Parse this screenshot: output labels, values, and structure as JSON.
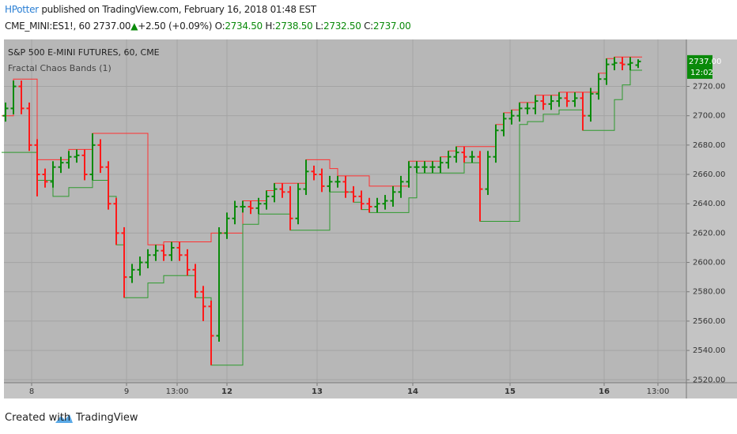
{
  "header": {
    "author": "HPotter",
    "published": "published on TradingView.com, February 16, 2018 01:48 EST",
    "symbol": "CME_MINI:ES1!, 60",
    "last": "2737.00",
    "arrow": "▲",
    "change": "+2.50 (+0.09%)",
    "o_label": "O:",
    "o": "2734.50",
    "h_label": "H:",
    "h": "2738.50",
    "l_label": "L:",
    "l": "2732.50",
    "c_label": "C:",
    "c": "2737.00"
  },
  "footer": {
    "created": "Created with",
    "brand": "TradingView"
  },
  "chart_data": {
    "type": "ohlc",
    "title": "S&P 500 E-MINI FUTURES, 60, CME",
    "indicator": "Fractal Chaos Bands (1)",
    "up_color": "#0a8a0a",
    "down_color": "#ff1a1a",
    "xlim": [
      0,
      86
    ],
    "ylim": [
      2518,
      2752
    ],
    "xticks": [
      {
        "value": 3.3,
        "label": "8"
      },
      {
        "value": 15.3,
        "label": "9"
      },
      {
        "value": 21.7,
        "label": "13:00"
      },
      {
        "value": 28,
        "label": "12"
      },
      {
        "value": 39.4,
        "label": "13"
      },
      {
        "value": 51.5,
        "label": "14"
      },
      {
        "value": 63.8,
        "label": "15"
      },
      {
        "value": 75.7,
        "label": "16"
      },
      {
        "value": 82.5,
        "label": "13:00"
      }
    ],
    "yticks": [
      {
        "value": 2520,
        "label": "2520.00"
      },
      {
        "value": 2540,
        "label": "2540.00"
      },
      {
        "value": 2560,
        "label": "2560.00"
      },
      {
        "value": 2580,
        "label": "2580.00"
      },
      {
        "value": 2600,
        "label": "2600.00"
      },
      {
        "value": 2620,
        "label": "2620.00"
      },
      {
        "value": 2640,
        "label": "2640.00"
      },
      {
        "value": 2660,
        "label": "2660.00"
      },
      {
        "value": 2680,
        "label": "2680.00"
      },
      {
        "value": 2700,
        "label": "2700.00"
      },
      {
        "value": 2720,
        "label": "2720.00"
      }
    ],
    "grid": true,
    "open": [
      2700,
      2705,
      2720,
      2705,
      2680,
      2660,
      2655,
      2665,
      2668,
      2672,
      2673,
      2660,
      2680,
      2665,
      2640,
      2620,
      2590,
      2595,
      2600,
      2605,
      2608,
      2605,
      2610,
      2605,
      2595,
      2580,
      2570,
      2550,
      2620,
      2630,
      2638,
      2638,
      2637,
      2640,
      2645,
      2650,
      2648,
      2630,
      2650,
      2662,
      2660,
      2652,
      2655,
      2655,
      2648,
      2645,
      2640,
      2638,
      2640,
      2642,
      2648,
      2655,
      2665,
      2665,
      2665,
      2665,
      2668,
      2672,
      2675,
      2672,
      2672,
      2650,
      2672,
      2690,
      2698,
      2700,
      2705,
      2705,
      2710,
      2708,
      2710,
      2712,
      2710,
      2712,
      2700,
      2715,
      2725,
      2735,
      2736,
      2735,
      2734.5
    ],
    "high": [
      2709,
      2724,
      2724,
      2709,
      2684,
      2664,
      2669,
      2672,
      2676,
      2677,
      2677,
      2688,
      2684,
      2669,
      2644,
      2624,
      2599,
      2604,
      2609,
      2612,
      2612,
      2614,
      2614,
      2609,
      2599,
      2584,
      2574,
      2624,
      2634,
      2642,
      2642,
      2642,
      2644,
      2649,
      2654,
      2654,
      2652,
      2654,
      2670,
      2666,
      2664,
      2659,
      2659,
      2659,
      2652,
      2649,
      2644,
      2644,
      2646,
      2652,
      2659,
      2669,
      2669,
      2669,
      2669,
      2672,
      2676,
      2679,
      2679,
      2676,
      2676,
      2676,
      2694,
      2702,
      2704,
      2709,
      2709,
      2714,
      2714,
      2714,
      2716,
      2716,
      2716,
      2716,
      2719,
      2729,
      2739,
      2740,
      2740,
      2740,
      2738.5
    ],
    "low": [
      2696,
      2701,
      2701,
      2676,
      2645,
      2651,
      2651,
      2661,
      2664,
      2668,
      2656,
      2656,
      2661,
      2636,
      2612,
      2576,
      2586,
      2591,
      2596,
      2601,
      2601,
      2601,
      2601,
      2591,
      2576,
      2560,
      2530,
      2546,
      2616,
      2626,
      2634,
      2633,
      2633,
      2636,
      2641,
      2644,
      2622,
      2626,
      2646,
      2656,
      2648,
      2648,
      2651,
      2644,
      2641,
      2636,
      2634,
      2634,
      2636,
      2638,
      2644,
      2651,
      2661,
      2661,
      2661,
      2661,
      2664,
      2668,
      2668,
      2668,
      2628,
      2646,
      2668,
      2686,
      2694,
      2696,
      2701,
      2701,
      2704,
      2704,
      2706,
      2706,
      2706,
      2690,
      2696,
      2711,
      2721,
      2731,
      2731,
      2731,
      2732.5
    ],
    "close": [
      2705,
      2720,
      2705,
      2680,
      2660,
      2655,
      2665,
      2668,
      2672,
      2673,
      2660,
      2680,
      2665,
      2640,
      2620,
      2590,
      2595,
      2600,
      2605,
      2608,
      2605,
      2610,
      2605,
      2595,
      2580,
      2570,
      2550,
      2620,
      2630,
      2638,
      2638,
      2637,
      2640,
      2645,
      2650,
      2648,
      2630,
      2650,
      2662,
      2660,
      2652,
      2655,
      2655,
      2648,
      2645,
      2640,
      2638,
      2640,
      2642,
      2648,
      2655,
      2665,
      2665,
      2665,
      2665,
      2668,
      2672,
      2675,
      2672,
      2672,
      2650,
      2672,
      2690,
      2698,
      2700,
      2705,
      2705,
      2710,
      2708,
      2710,
      2712,
      2710,
      2712,
      2700,
      2715,
      2725,
      2735,
      2736,
      2735,
      2736,
      2737
    ],
    "bands": [
      {
        "color": "#ff3030",
        "values": [
          2700,
          2725,
          2725,
          2725,
          2670,
          2670,
          2670,
          2670,
          2677,
          2677,
          2677,
          2688,
          2688,
          2688,
          2688,
          2688,
          2688,
          2688,
          2612,
          2612,
          2614,
          2614,
          2614,
          2614,
          2614,
          2614,
          2620,
          2620,
          2620,
          2620,
          2642,
          2642,
          2642,
          2649,
          2654,
          2654,
          2654,
          2654,
          2670,
          2670,
          2670,
          2664,
          2659,
          2659,
          2659,
          2659,
          2652,
          2652,
          2652,
          2652,
          2652,
          2669,
          2669,
          2669,
          2669,
          2672,
          2676,
          2679,
          2679,
          2679,
          2679,
          2679,
          2694,
          2702,
          2704,
          2709,
          2709,
          2714,
          2714,
          2714,
          2716,
          2716,
          2716,
          2716,
          2716,
          2729,
          2739,
          2740,
          2740,
          2740,
          2740
        ]
      },
      {
        "color": "#2e9a2e",
        "values": [
          2675,
          2675,
          2675,
          2675,
          2656,
          2656,
          2645,
          2645,
          2651,
          2651,
          2651,
          2656,
          2656,
          2645,
          2612,
          2576,
          2576,
          2576,
          2586,
          2586,
          2591,
          2591,
          2591,
          2591,
          2576,
          2576,
          2530,
          2530,
          2530,
          2530,
          2626,
          2626,
          2633,
          2633,
          2633,
          2633,
          2622,
          2622,
          2622,
          2622,
          2622,
          2648,
          2648,
          2648,
          2641,
          2636,
          2634,
          2634,
          2634,
          2634,
          2634,
          2644,
          2661,
          2661,
          2661,
          2661,
          2661,
          2661,
          2668,
          2668,
          2628,
          2628,
          2628,
          2628,
          2628,
          2694,
          2696,
          2696,
          2701,
          2701,
          2704,
          2704,
          2704,
          2690,
          2690,
          2690,
          2690,
          2711,
          2721,
          2731,
          2731
        ]
      }
    ],
    "price_label": {
      "value": 2737,
      "label": "2737.00",
      "countdown": "12:02",
      "color": "#0a8a0a"
    }
  }
}
